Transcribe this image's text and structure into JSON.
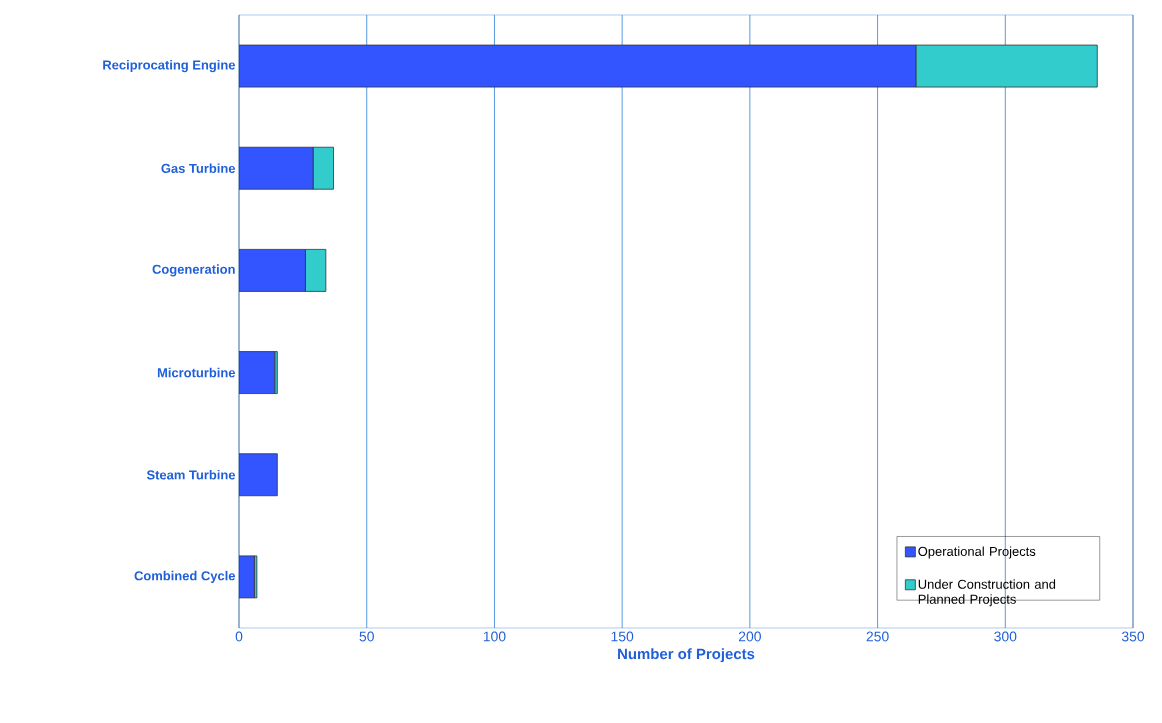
{
  "chart_data": {
    "type": "bar",
    "orientation": "horizontal",
    "stacked": true,
    "xlabel": "Number of Projects",
    "categories": [
      "Reciprocating Engine",
      "Gas Turbine",
      "Cogeneration",
      "Microturbine",
      "Steam Turbine",
      "Combined Cycle"
    ],
    "series": [
      {
        "name": "Operational Projects",
        "color": "#3355ff",
        "values": [
          265,
          29,
          26,
          14,
          15,
          6
        ]
      },
      {
        "name": "Under Construction and Planned Projects",
        "color": "#33cccc",
        "values": [
          71,
          8,
          8,
          1,
          0,
          1
        ]
      }
    ],
    "xlim": [
      0,
      350
    ],
    "xticks": [
      0,
      50,
      100,
      150,
      200,
      250,
      300,
      350
    ],
    "grid": "x",
    "legend": "bottom right"
  }
}
